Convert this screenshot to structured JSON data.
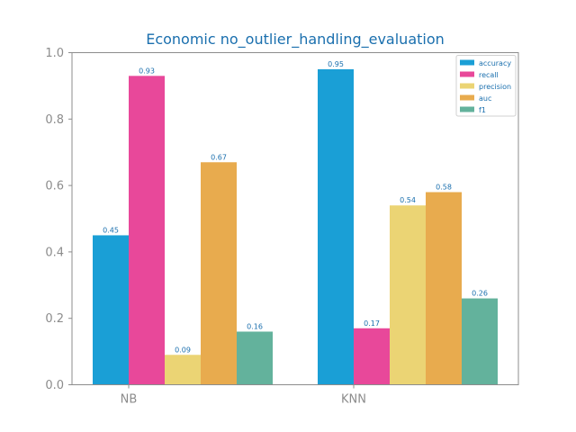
{
  "chart_data": {
    "type": "bar",
    "title": "Economic no_outlier_handling_evaluation",
    "xlabel": "",
    "ylabel": "",
    "categories": [
      "NB",
      "KNN"
    ],
    "ylim": [
      0,
      1.0
    ],
    "yticks": [
      "0.0",
      "0.2",
      "0.4",
      "0.6",
      "0.8",
      "1.0"
    ],
    "grid": false,
    "legend_position": "top-right",
    "series": [
      {
        "name": "accuracy",
        "color": "#1a9fd6",
        "values": [
          0.45,
          0.95
        ],
        "labels": [
          "0.45",
          "0.95"
        ]
      },
      {
        "name": "recall",
        "color": "#e8489a",
        "values": [
          0.93,
          0.17
        ],
        "labels": [
          "0.93",
          "0.17"
        ]
      },
      {
        "name": "precision",
        "color": "#ebd474",
        "values": [
          0.09,
          0.54
        ],
        "labels": [
          "0.09",
          "0.54"
        ]
      },
      {
        "name": "auc",
        "color": "#e8ab4e",
        "values": [
          0.67,
          0.58
        ],
        "labels": [
          "0.67",
          "0.58"
        ]
      },
      {
        "name": "f1",
        "color": "#63b29c",
        "values": [
          0.16,
          0.26
        ],
        "labels": [
          "0.16",
          "0.26"
        ]
      }
    ]
  }
}
